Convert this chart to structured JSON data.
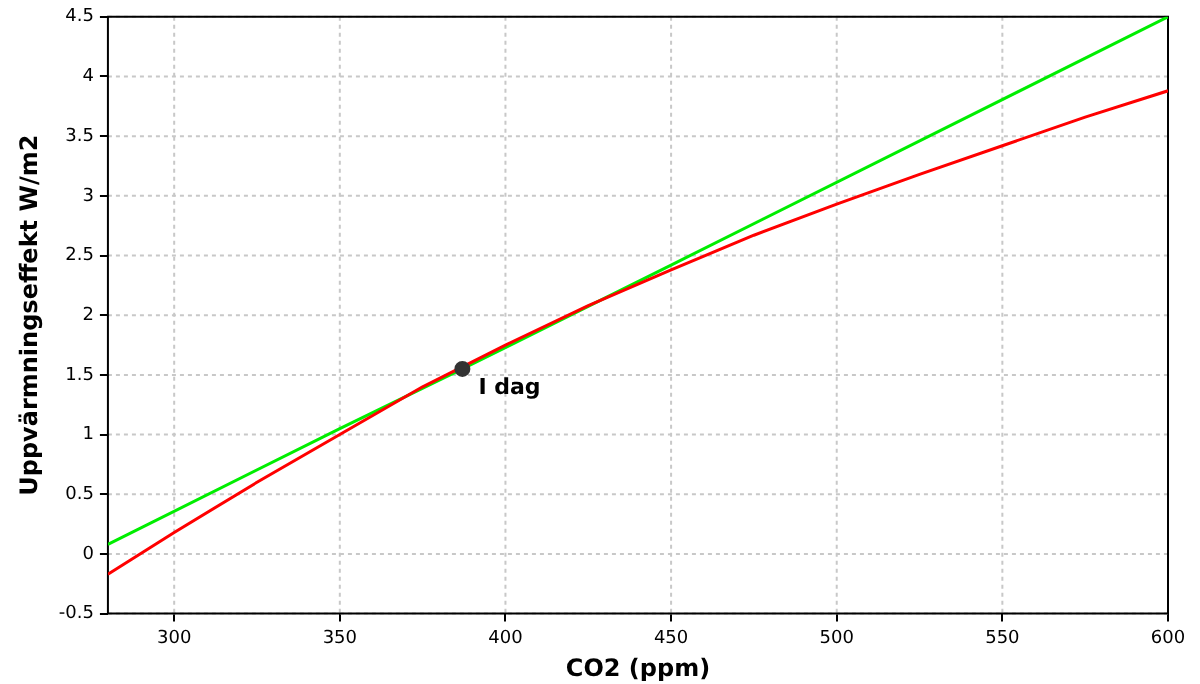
{
  "chart_data": {
    "type": "line",
    "xlabel": "CO2 (ppm)",
    "ylabel": "Uppvärmningseffekt W/m2",
    "xlim": [
      280,
      600
    ],
    "xticks": [
      300,
      350,
      400,
      450,
      500,
      550,
      600
    ],
    "ylim": [
      -0.5,
      4.5
    ],
    "yticks": [
      -0.5,
      0,
      0.5,
      1,
      1.5,
      2,
      2.5,
      3,
      3.5,
      4,
      4.5
    ],
    "grid": true,
    "legend": false,
    "marker": "none",
    "line_style": "solid",
    "series": [
      {
        "color": "#ff0000",
        "x": [
          280,
          300,
          325,
          350,
          375,
          400,
          425,
          450,
          475,
          500,
          525,
          550,
          575,
          600
        ],
        "values": [
          -0.17,
          0.18,
          0.6,
          1.0,
          1.4,
          1.75,
          2.08,
          2.38,
          2.67,
          2.93,
          3.18,
          3.42,
          3.66,
          3.88
        ]
      },
      {
        "color": "#00ee00",
        "x": [
          280,
          350,
          387,
          450,
          600
        ],
        "values": [
          0.08,
          1.05,
          1.55,
          2.42,
          4.5
        ]
      },
      {
        "type": "scatter",
        "color": "#333333",
        "marker": "circle",
        "x": [
          387
        ],
        "values": [
          1.55
        ]
      }
    ],
    "annotations": [
      {
        "text": "I dag",
        "x": 387,
        "y": 1.55
      }
    ]
  }
}
